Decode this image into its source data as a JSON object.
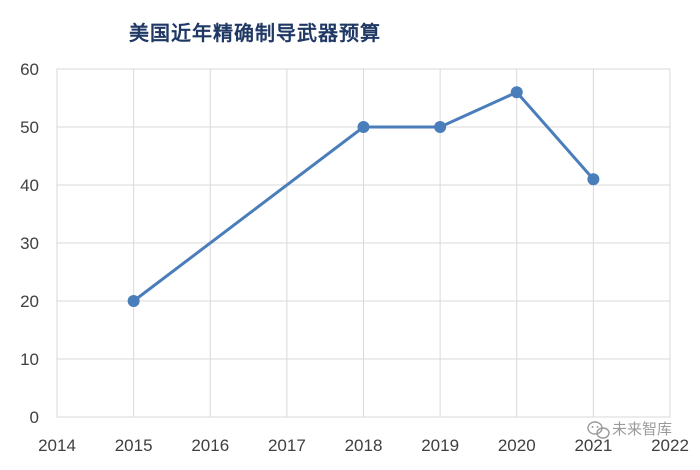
{
  "chart_data": {
    "type": "line",
    "title": "美国近年精确制导武器预算",
    "xlabel": "",
    "ylabel": "",
    "x": [
      2015,
      2018,
      2019,
      2020,
      2021
    ],
    "values": [
      20,
      50,
      50,
      56,
      41
    ],
    "x_ticks": [
      "2014",
      "2015",
      "2016",
      "2017",
      "2018",
      "2019",
      "2020",
      "2021",
      "2022"
    ],
    "y_ticks": [
      "0",
      "10",
      "20",
      "30",
      "40",
      "50",
      "60"
    ],
    "xlim": [
      2014,
      2022
    ],
    "ylim": [
      0,
      60
    ],
    "grid": true,
    "legend": "none",
    "colors": {
      "line": "#4a7ebb",
      "title": "#1f3864",
      "grid": "#d9d9d9",
      "tick_text": "#404040"
    }
  },
  "watermark": {
    "text": "未来智库",
    "icon": "wechat-icon"
  }
}
